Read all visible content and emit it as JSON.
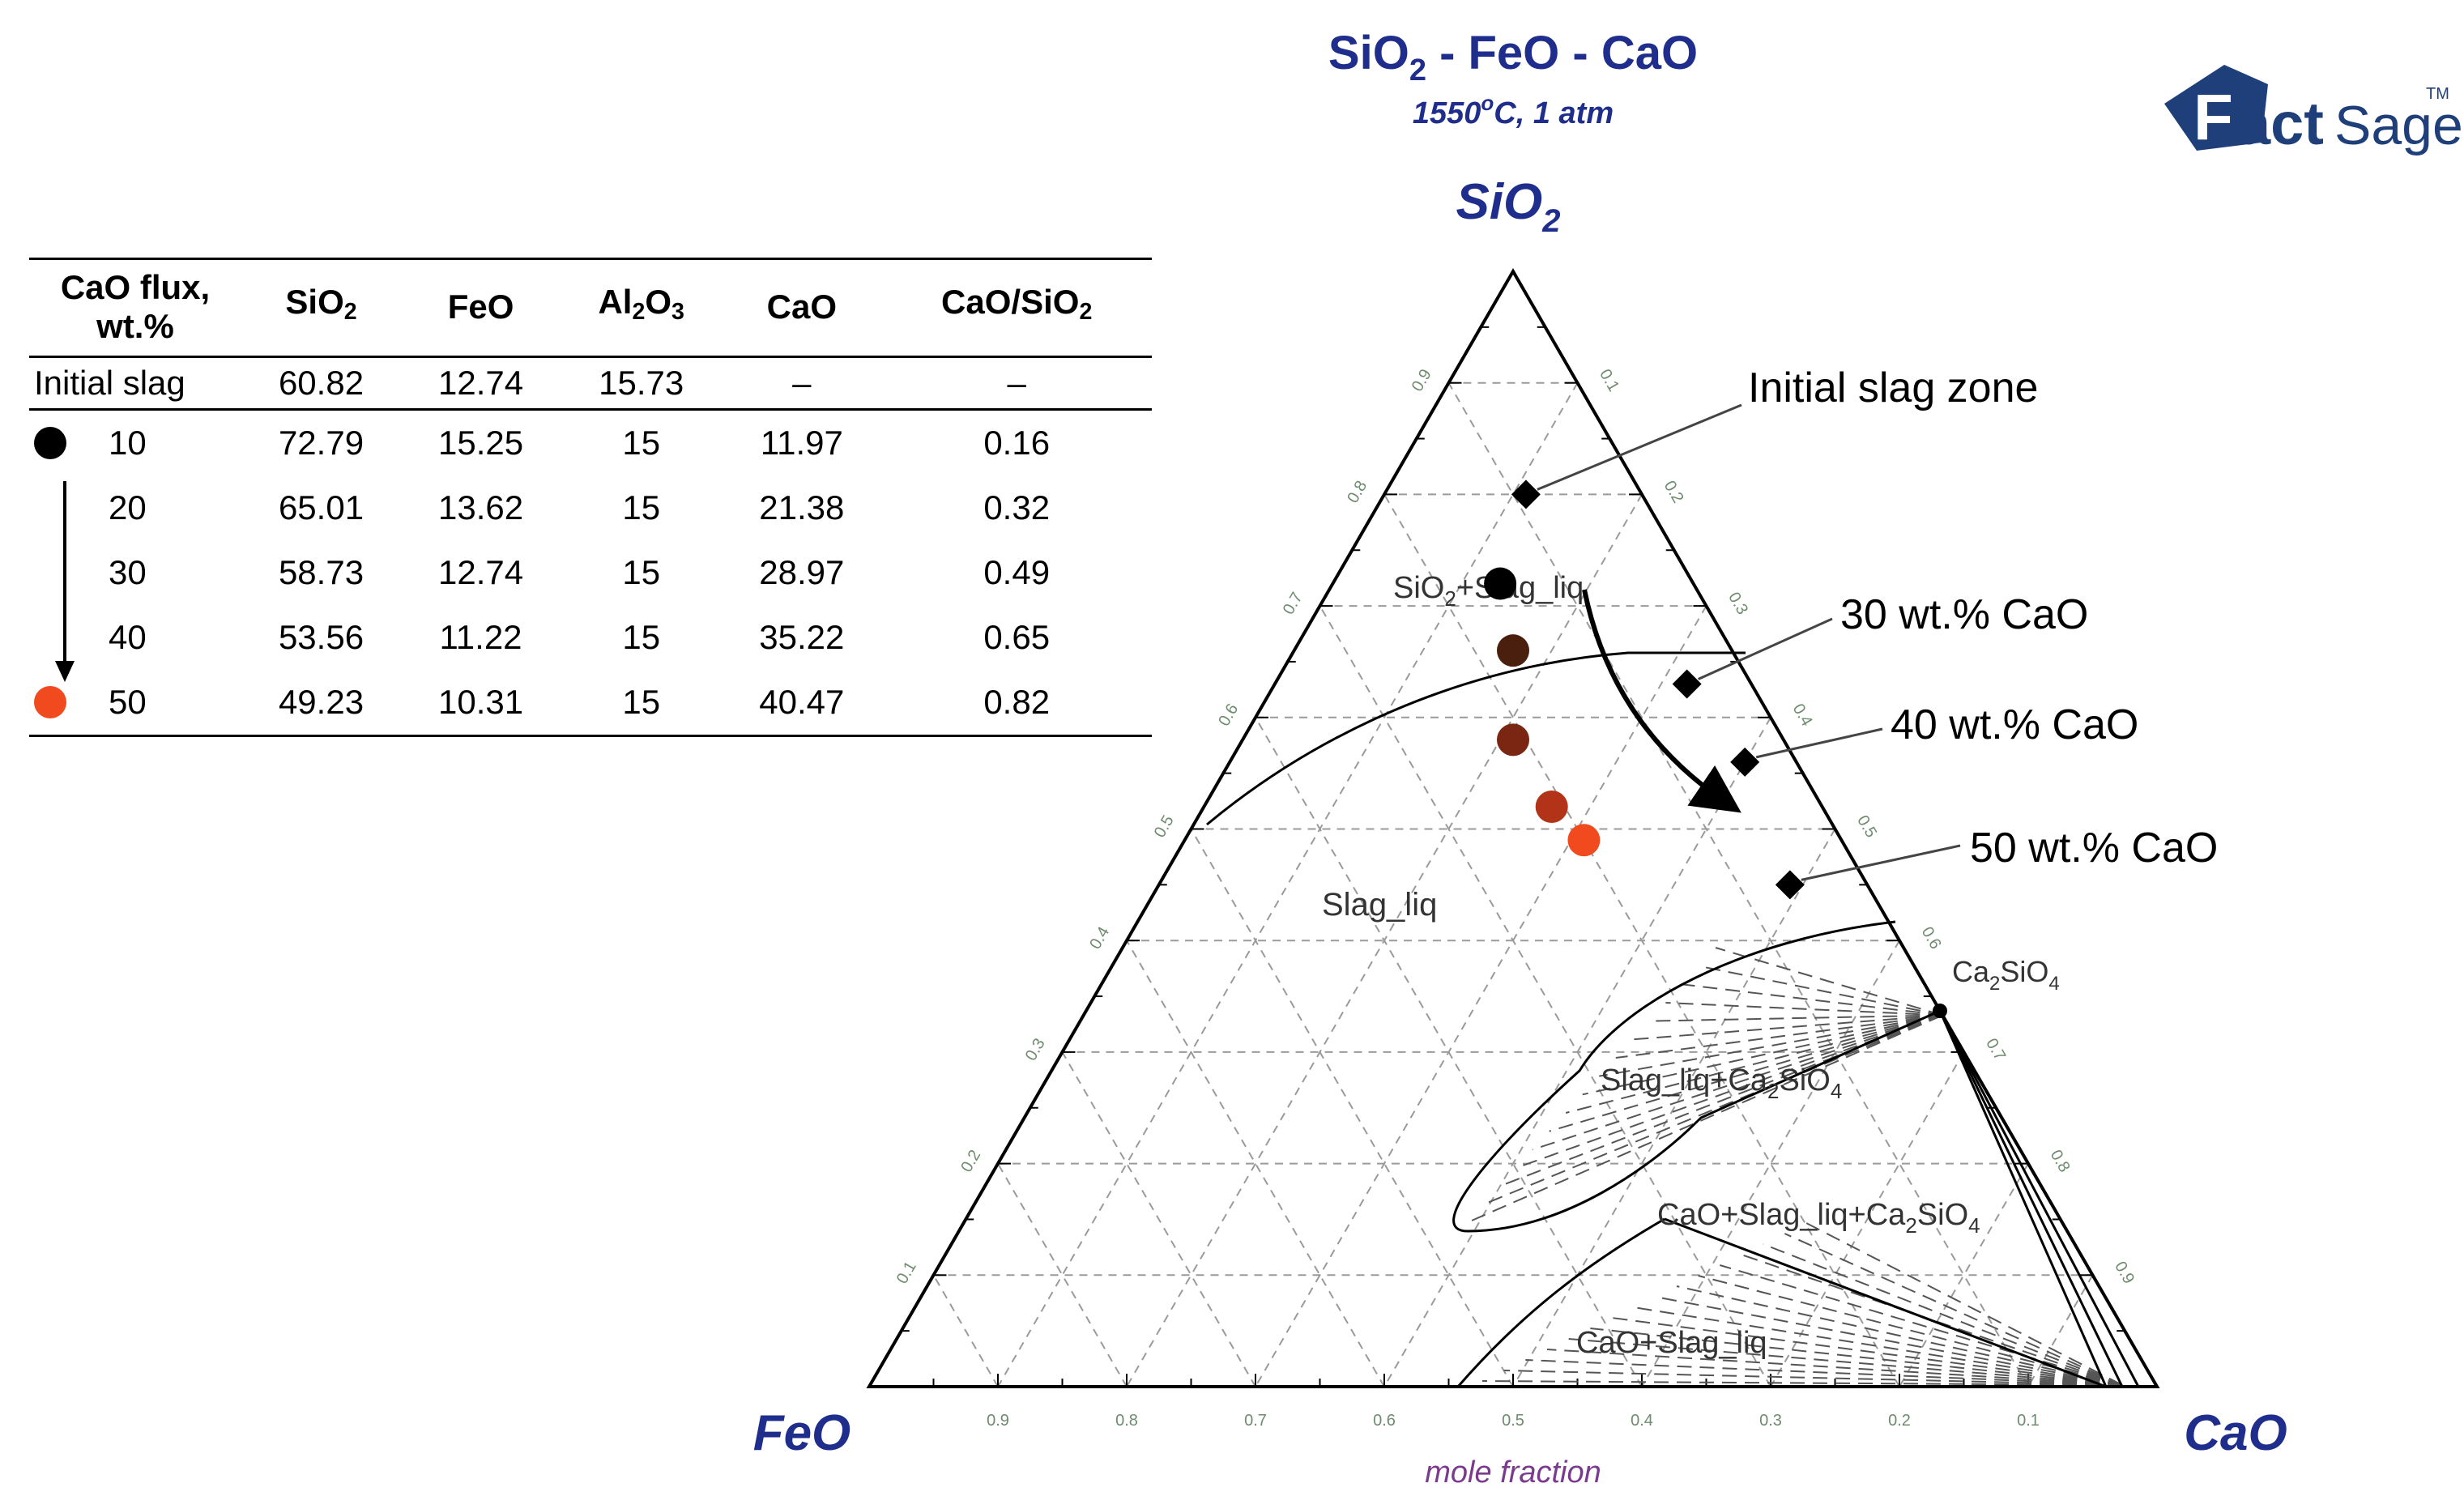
{
  "diagram": {
    "title": {
      "a": "SiO",
      "a_sub": "2",
      "b": " - FeO - CaO"
    },
    "conditions": {
      "t": "1550",
      "deg": "o",
      "rest": "C, 1 atm"
    },
    "logo": {
      "letter": "F",
      "bold": "act",
      "light": "Sage",
      "tm": "TM"
    },
    "apex_top": {
      "base": "SiO",
      "sub": "2"
    },
    "apex_left": "FeO",
    "apex_right": "CaO",
    "axis_label": "mole fraction",
    "bottom_ticks": [
      "0.9",
      "0.8",
      "0.7",
      "0.6",
      "0.5",
      "0.4",
      "0.3",
      "0.2",
      "0.1"
    ],
    "left_ticks": [
      "0.9",
      "0.8",
      "0.7",
      "0.6",
      "0.5",
      "0.4",
      "0.3",
      "0.2",
      "0.1"
    ],
    "right_ticks": [
      "0.1",
      "0.2",
      "0.3",
      "0.4",
      "0.5",
      "0.6",
      "0.7",
      "0.8",
      "0.9"
    ],
    "regions": {
      "sio2_slag": {
        "a": "SiO",
        "sub": "2",
        "b": "+Slag_liq"
      },
      "slag": "Slag_liq",
      "ca2sio4": {
        "a": "Ca",
        "s1": "2",
        "b": "SiO",
        "s2": "4"
      },
      "slag_ca2sio4": {
        "a": "Slag_liq+Ca",
        "s1": "2",
        "b": "SiO",
        "s2": "4"
      },
      "cao_slag_ca2sio4": {
        "a": "CaO+Slag_liq+Ca",
        "s1": "2",
        "b": "SiO",
        "s2": "4"
      },
      "cao_slag": "CaO+Slag_liq"
    },
    "annotations": {
      "initial_zone": "Initial slag zone",
      "cao30": "30 wt.% CaO",
      "cao40": "40 wt.% CaO",
      "cao50": "50 wt.% CaO"
    },
    "diamonds": [
      {
        "name": "initial-slag-zone",
        "SiO2": 0.8,
        "CaO": 0.11
      },
      {
        "name": "30-wt-cao",
        "SiO2": 0.63,
        "CaO": 0.32
      },
      {
        "name": "40-wt-cao",
        "SiO2": 0.56,
        "CaO": 0.4
      },
      {
        "name": "50-wt-cao",
        "SiO2": 0.45,
        "CaO": 0.49
      }
    ],
    "points": [
      {
        "cao_flux": "10",
        "SiO2": 0.72,
        "CaO": 0.13,
        "color": "#000000"
      },
      {
        "cao_flux": "20",
        "SiO2": 0.66,
        "CaO": 0.17,
        "color": "#4a1f0e"
      },
      {
        "cao_flux": "30",
        "SiO2": 0.58,
        "CaO": 0.21,
        "color": "#7a2612"
      },
      {
        "cao_flux": "40",
        "SiO2": 0.52,
        "CaO": 0.27,
        "color": "#b23318"
      },
      {
        "cao_flux": "50",
        "SiO2": 0.49,
        "CaO": 0.31,
        "color": "#f04a1e"
      }
    ],
    "colors": {
      "title": "#1f2d8c",
      "apex": "#1f2d8c",
      "axis_label": "#7a3b8f",
      "tick": "#6e8b6e",
      "logo": "#1f3f7a"
    }
  },
  "table": {
    "headers": {
      "flux": "CaO flux, wt.%",
      "sio2": {
        "base": "SiO",
        "sub": "2"
      },
      "feo": "FeO",
      "al2o3": {
        "a": "Al",
        "s1": "2",
        "b": "O",
        "s2": "3"
      },
      "cao": "CaO",
      "ratio": {
        "base": "CaO/SiO",
        "sub": "2"
      }
    },
    "initial": {
      "label": "Initial slag",
      "sio2": "60.82",
      "feo": "12.74",
      "al2o3": "15.73",
      "cao": "–",
      "ratio": "–"
    },
    "rows": [
      {
        "flux": "10",
        "sio2": "72.79",
        "feo": "15.25",
        "al2o3": "15",
        "cao": "11.97",
        "ratio": "0.16",
        "marker": "#000000"
      },
      {
        "flux": "20",
        "sio2": "65.01",
        "feo": "13.62",
        "al2o3": "15",
        "cao": "21.38",
        "ratio": "0.32",
        "marker": ""
      },
      {
        "flux": "30",
        "sio2": "58.73",
        "feo": "12.74",
        "al2o3": "15",
        "cao": "28.97",
        "ratio": "0.49",
        "marker": ""
      },
      {
        "flux": "40",
        "sio2": "53.56",
        "feo": "11.22",
        "al2o3": "15",
        "cao": "35.22",
        "ratio": "0.65",
        "marker": ""
      },
      {
        "flux": "50",
        "sio2": "49.23",
        "feo": "10.31",
        "al2o3": "15",
        "cao": "40.47",
        "ratio": "0.82",
        "marker": "#f04a1e"
      }
    ]
  }
}
